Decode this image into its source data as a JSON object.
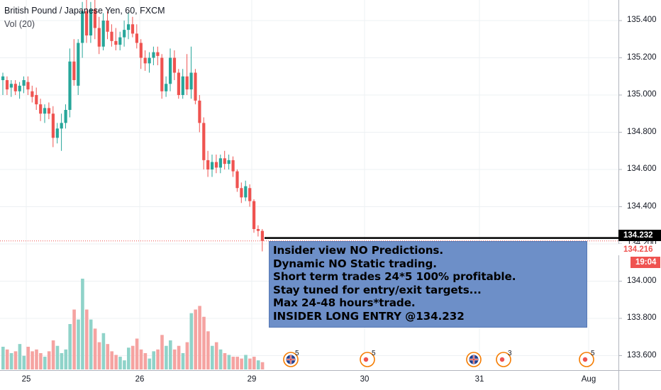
{
  "header": {
    "symbol_title": "British Pound / Japanese Yen, 60, FXCM",
    "volume_label": "Vol (20)"
  },
  "annotation": {
    "lines": [
      "Insider view NO Predictions.",
      "Dynamic NO Static trading.",
      "Short term trades 24*5 100% profitable.",
      "Stay tuned for entry/exit targets...",
      "Max 24-48 hours*trade.",
      "INSIDER LONG ENTRY @134.232"
    ],
    "background": "#6d8fc8"
  },
  "price_badges": {
    "level_line": "134.232",
    "last_price": "134.216",
    "countdown": "19:04"
  },
  "event_markers": [
    {
      "type": "uk-flag-icon",
      "count": "5",
      "x_label": "29"
    },
    {
      "type": "economic-event-icon",
      "count": "5",
      "x_label": "30"
    },
    {
      "type": "uk-flag-icon",
      "count": "",
      "x_label": "31"
    },
    {
      "type": "economic-event-icon",
      "count": "3",
      "x_label": "31"
    },
    {
      "type": "economic-event-icon",
      "count": "5",
      "x_label": "Aug"
    }
  ],
  "colors": {
    "up": "#26a69a",
    "down": "#ef5350",
    "up_volume": "#8fd3c9",
    "down_volume": "#f5a3a1",
    "last_price_line": "#ef5350",
    "level_line": "#000000",
    "annotation_bg": "#6d8fc8"
  },
  "chart_data": {
    "type": "candlestick",
    "title": "British Pound / Japanese Yen, 60, FXCM",
    "indicator": "Vol (20)",
    "y_ticks": [
      "135.400",
      "135.200",
      "135.000",
      "134.800",
      "134.600",
      "134.400",
      "134.200",
      "134.000",
      "133.800",
      "133.600"
    ],
    "x_ticks": [
      "25",
      "26",
      "29",
      "30",
      "31",
      "Aug"
    ],
    "ylim": [
      133.54,
      135.48
    ],
    "grid": true,
    "last_price": 134.216,
    "horizontal_level": 134.232,
    "candles": [
      {
        "o": 135.08,
        "h": 135.12,
        "l": 135.0,
        "c": 135.1
      },
      {
        "o": 135.08,
        "h": 135.1,
        "l": 135.0,
        "c": 135.03
      },
      {
        "o": 135.04,
        "h": 135.08,
        "l": 134.99,
        "c": 135.06
      },
      {
        "o": 135.06,
        "h": 135.08,
        "l": 135.0,
        "c": 135.02
      },
      {
        "o": 135.02,
        "h": 135.07,
        "l": 134.98,
        "c": 135.05
      },
      {
        "o": 135.05,
        "h": 135.1,
        "l": 135.01,
        "c": 135.08
      },
      {
        "o": 135.07,
        "h": 135.1,
        "l": 135.0,
        "c": 135.03
      },
      {
        "o": 135.02,
        "h": 135.05,
        "l": 134.96,
        "c": 134.99
      },
      {
        "o": 135.0,
        "h": 135.04,
        "l": 134.92,
        "c": 134.95
      },
      {
        "o": 134.95,
        "h": 134.98,
        "l": 134.86,
        "c": 134.9
      },
      {
        "o": 134.9,
        "h": 134.95,
        "l": 134.85,
        "c": 134.93
      },
      {
        "o": 134.93,
        "h": 134.96,
        "l": 134.87,
        "c": 134.9
      },
      {
        "o": 134.9,
        "h": 134.94,
        "l": 134.72,
        "c": 134.77
      },
      {
        "o": 134.77,
        "h": 134.85,
        "l": 134.74,
        "c": 134.82
      },
      {
        "o": 134.82,
        "h": 134.9,
        "l": 134.7,
        "c": 134.85
      },
      {
        "o": 134.85,
        "h": 134.95,
        "l": 134.82,
        "c": 134.92
      },
      {
        "o": 134.92,
        "h": 135.25,
        "l": 134.88,
        "c": 135.18
      },
      {
        "o": 135.18,
        "h": 135.3,
        "l": 135.05,
        "c": 135.08
      },
      {
        "o": 135.05,
        "h": 135.3,
        "l": 135.0,
        "c": 135.28
      },
      {
        "o": 135.28,
        "h": 135.5,
        "l": 135.2,
        "c": 135.45
      },
      {
        "o": 135.45,
        "h": 135.55,
        "l": 135.28,
        "c": 135.32
      },
      {
        "o": 135.32,
        "h": 135.5,
        "l": 135.28,
        "c": 135.46
      },
      {
        "o": 135.46,
        "h": 135.52,
        "l": 135.3,
        "c": 135.36
      },
      {
        "o": 135.36,
        "h": 135.42,
        "l": 135.22,
        "c": 135.26
      },
      {
        "o": 135.26,
        "h": 135.44,
        "l": 135.24,
        "c": 135.4
      },
      {
        "o": 135.4,
        "h": 135.45,
        "l": 135.3,
        "c": 135.34
      },
      {
        "o": 135.34,
        "h": 135.38,
        "l": 135.26,
        "c": 135.29
      },
      {
        "o": 135.29,
        "h": 135.36,
        "l": 135.24,
        "c": 135.27
      },
      {
        "o": 135.27,
        "h": 135.34,
        "l": 135.24,
        "c": 135.31
      },
      {
        "o": 135.31,
        "h": 135.4,
        "l": 135.26,
        "c": 135.35
      },
      {
        "o": 135.35,
        "h": 135.44,
        "l": 135.3,
        "c": 135.38
      },
      {
        "o": 135.38,
        "h": 135.42,
        "l": 135.31,
        "c": 135.33
      },
      {
        "o": 135.33,
        "h": 135.38,
        "l": 135.25,
        "c": 135.28
      },
      {
        "o": 135.28,
        "h": 135.3,
        "l": 135.14,
        "c": 135.2
      },
      {
        "o": 135.2,
        "h": 135.24,
        "l": 135.13,
        "c": 135.17
      },
      {
        "o": 135.17,
        "h": 135.23,
        "l": 135.12,
        "c": 135.2
      },
      {
        "o": 135.2,
        "h": 135.26,
        "l": 135.16,
        "c": 135.23
      },
      {
        "o": 135.23,
        "h": 135.26,
        "l": 135.16,
        "c": 135.21
      },
      {
        "o": 135.2,
        "h": 135.22,
        "l": 134.98,
        "c": 135.02
      },
      {
        "o": 135.02,
        "h": 135.1,
        "l": 134.99,
        "c": 135.06
      },
      {
        "o": 135.06,
        "h": 135.25,
        "l": 135.02,
        "c": 135.2
      },
      {
        "o": 135.2,
        "h": 135.24,
        "l": 135.08,
        "c": 135.12
      },
      {
        "o": 135.12,
        "h": 135.14,
        "l": 134.98,
        "c": 135.0
      },
      {
        "o": 135.0,
        "h": 135.14,
        "l": 134.98,
        "c": 135.1
      },
      {
        "o": 135.1,
        "h": 135.22,
        "l": 135.0,
        "c": 135.03
      },
      {
        "o": 135.03,
        "h": 135.26,
        "l": 134.98,
        "c": 135.12
      },
      {
        "o": 135.12,
        "h": 135.14,
        "l": 134.95,
        "c": 134.97
      },
      {
        "o": 134.97,
        "h": 135.0,
        "l": 134.8,
        "c": 134.85
      },
      {
        "o": 134.85,
        "h": 134.88,
        "l": 134.6,
        "c": 134.65
      },
      {
        "o": 134.65,
        "h": 134.7,
        "l": 134.56,
        "c": 134.6
      },
      {
        "o": 134.6,
        "h": 134.68,
        "l": 134.56,
        "c": 134.64
      },
      {
        "o": 134.64,
        "h": 134.68,
        "l": 134.58,
        "c": 134.61
      },
      {
        "o": 134.61,
        "h": 134.68,
        "l": 134.58,
        "c": 134.66
      },
      {
        "o": 134.66,
        "h": 134.7,
        "l": 134.6,
        "c": 134.63
      },
      {
        "o": 134.63,
        "h": 134.68,
        "l": 134.6,
        "c": 134.65
      },
      {
        "o": 134.65,
        "h": 134.67,
        "l": 134.56,
        "c": 134.59
      },
      {
        "o": 134.59,
        "h": 134.6,
        "l": 134.48,
        "c": 134.5
      },
      {
        "o": 134.5,
        "h": 134.53,
        "l": 134.42,
        "c": 134.45
      },
      {
        "o": 134.45,
        "h": 134.54,
        "l": 134.43,
        "c": 134.51
      },
      {
        "o": 134.5,
        "h": 134.52,
        "l": 134.4,
        "c": 134.43
      },
      {
        "o": 134.43,
        "h": 134.44,
        "l": 134.26,
        "c": 134.28
      },
      {
        "o": 134.28,
        "h": 134.3,
        "l": 134.24,
        "c": 134.27
      },
      {
        "o": 134.27,
        "h": 134.28,
        "l": 134.16,
        "c": 134.216
      }
    ],
    "volume": [
      {
        "v": 0.25,
        "up": true
      },
      {
        "v": 0.22,
        "up": false
      },
      {
        "v": 0.18,
        "up": true
      },
      {
        "v": 0.2,
        "up": false
      },
      {
        "v": 0.28,
        "up": true
      },
      {
        "v": 0.15,
        "up": true
      },
      {
        "v": 0.25,
        "up": false
      },
      {
        "v": 0.2,
        "up": false
      },
      {
        "v": 0.22,
        "up": false
      },
      {
        "v": 0.18,
        "up": false
      },
      {
        "v": 0.14,
        "up": true
      },
      {
        "v": 0.2,
        "up": false
      },
      {
        "v": 0.32,
        "up": false
      },
      {
        "v": 0.26,
        "up": true
      },
      {
        "v": 0.18,
        "up": true
      },
      {
        "v": 0.22,
        "up": true
      },
      {
        "v": 0.5,
        "up": true
      },
      {
        "v": 0.66,
        "up": false
      },
      {
        "v": 0.55,
        "up": true
      },
      {
        "v": 1.0,
        "up": true
      },
      {
        "v": 0.66,
        "up": false
      },
      {
        "v": 0.55,
        "up": true
      },
      {
        "v": 0.45,
        "up": false
      },
      {
        "v": 0.3,
        "up": false
      },
      {
        "v": 0.4,
        "up": true
      },
      {
        "v": 0.28,
        "up": false
      },
      {
        "v": 0.2,
        "up": false
      },
      {
        "v": 0.16,
        "up": false
      },
      {
        "v": 0.14,
        "up": true
      },
      {
        "v": 0.1,
        "up": true
      },
      {
        "v": 0.24,
        "up": true
      },
      {
        "v": 0.26,
        "up": false
      },
      {
        "v": 0.34,
        "up": false
      },
      {
        "v": 0.22,
        "up": false
      },
      {
        "v": 0.18,
        "up": false
      },
      {
        "v": 0.12,
        "up": true
      },
      {
        "v": 0.2,
        "up": true
      },
      {
        "v": 0.22,
        "up": false
      },
      {
        "v": 0.38,
        "up": false
      },
      {
        "v": 0.26,
        "up": true
      },
      {
        "v": 0.32,
        "up": true
      },
      {
        "v": 0.22,
        "up": false
      },
      {
        "v": 0.26,
        "up": false
      },
      {
        "v": 0.18,
        "up": true
      },
      {
        "v": 0.3,
        "up": false
      },
      {
        "v": 0.62,
        "up": true
      },
      {
        "v": 0.66,
        "up": false
      },
      {
        "v": 0.7,
        "up": false
      },
      {
        "v": 0.58,
        "up": false
      },
      {
        "v": 0.42,
        "up": false
      },
      {
        "v": 0.26,
        "up": true
      },
      {
        "v": 0.3,
        "up": false
      },
      {
        "v": 0.22,
        "up": true
      },
      {
        "v": 0.18,
        "up": false
      },
      {
        "v": 0.16,
        "up": true
      },
      {
        "v": 0.14,
        "up": false
      },
      {
        "v": 0.14,
        "up": false
      },
      {
        "v": 0.12,
        "up": false
      },
      {
        "v": 0.16,
        "up": true
      },
      {
        "v": 0.12,
        "up": false
      },
      {
        "v": 0.14,
        "up": false
      },
      {
        "v": 0.1,
        "up": true
      },
      {
        "v": 0.08,
        "up": false
      }
    ]
  }
}
